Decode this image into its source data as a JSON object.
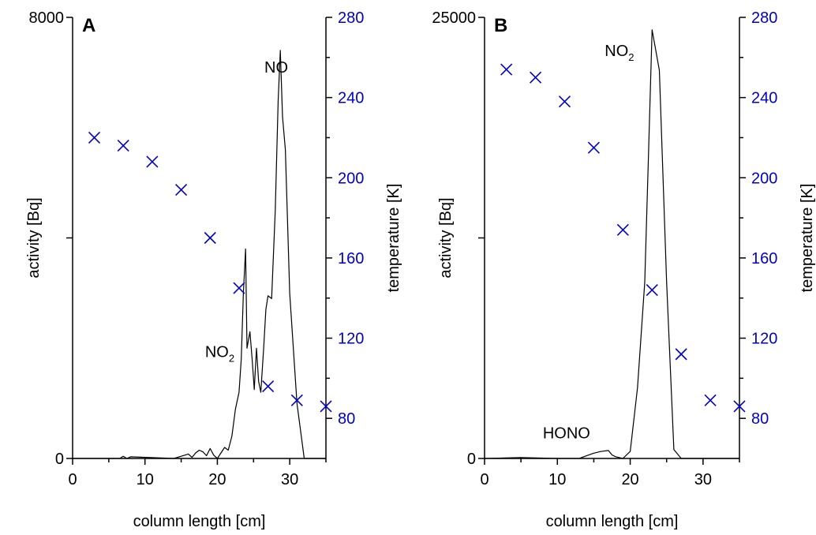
{
  "chart_data": [
    {
      "panel_label": "A",
      "type": "line",
      "xlabel": "column length [cm]",
      "ylabel": "activity [Bq]",
      "y2label": "temperature [K]",
      "xlim": [
        0,
        35
      ],
      "ylim": [
        0,
        8000
      ],
      "y2lim": [
        60,
        280
      ],
      "x_ticks": [
        0,
        10,
        20,
        30
      ],
      "y_ticks": [
        0,
        8000
      ],
      "y2_ticks": [
        80,
        120,
        160,
        200,
        240,
        280
      ],
      "colors": {
        "activity": "#000000",
        "temperature": "#0000cc"
      },
      "activity_curve": {
        "x": [
          0,
          5,
          6.5,
          7,
          7.5,
          8,
          14,
          15,
          16,
          16.5,
          17,
          17.5,
          18,
          18.5,
          19,
          19.5,
          20,
          20.5,
          21,
          21.5,
          22,
          22.5,
          23,
          23.3,
          23.6,
          23.9,
          24.1,
          24.5,
          24.8,
          25.1,
          25.4,
          25.7,
          26,
          26.4,
          26.7,
          27,
          27.5,
          28,
          28.4,
          28.7,
          29,
          29.4,
          30,
          31,
          32,
          32.5,
          35
        ],
        "y": [
          0,
          0,
          0,
          40,
          0,
          30,
          0,
          40,
          80,
          20,
          100,
          150,
          120,
          50,
          180,
          60,
          0,
          100,
          200,
          150,
          400,
          900,
          1200,
          1800,
          3000,
          3800,
          2000,
          2300,
          1800,
          1250,
          2000,
          1400,
          1200,
          2000,
          2700,
          2950,
          2900,
          4500,
          6500,
          7400,
          6200,
          5600,
          3000,
          1000,
          0,
          0,
          0
        ]
      },
      "temperature_points": {
        "x": [
          3,
          7,
          11,
          15,
          19,
          23,
          27,
          31,
          35
        ],
        "y": [
          220,
          216,
          208,
          194,
          170,
          145,
          96,
          89,
          86
        ]
      },
      "annotations": [
        {
          "text": "NO",
          "x": 26.5,
          "y": 7000
        },
        {
          "text": "NO",
          "sub": "2",
          "x": 18.3,
          "y": 1840
        }
      ]
    },
    {
      "panel_label": "B",
      "type": "line",
      "xlabel": "column length [cm]",
      "ylabel": "activity [Bq]",
      "y2label": "temperature [K]",
      "xlim": [
        0,
        35
      ],
      "ylim": [
        0,
        25000
      ],
      "y2lim": [
        60,
        280
      ],
      "x_ticks": [
        0,
        10,
        20,
        30
      ],
      "y_ticks": [
        0,
        25000
      ],
      "y2_ticks": [
        80,
        120,
        160,
        200,
        240,
        280
      ],
      "colors": {
        "activity": "#000000",
        "temperature": "#0000cc"
      },
      "activity_curve": {
        "x": [
          0,
          5,
          10,
          13,
          14,
          15,
          16,
          17,
          17.5,
          18,
          19,
          20,
          21,
          22,
          22.5,
          23,
          24,
          25,
          26,
          27,
          28,
          35
        ],
        "y": [
          0,
          50,
          0,
          0,
          150,
          300,
          400,
          450,
          200,
          100,
          0,
          400,
          4000,
          10000,
          17000,
          24300,
          22000,
          10000,
          500,
          0,
          0,
          0
        ]
      },
      "temperature_points": {
        "x": [
          3,
          7,
          11,
          15,
          19,
          23,
          27,
          31,
          35
        ],
        "y": [
          254,
          250,
          238,
          215,
          174,
          144,
          112,
          89,
          86
        ]
      },
      "annotations": [
        {
          "text": "NO",
          "sub": "2",
          "x": 16.5,
          "y": 22800
        },
        {
          "text": "HONO",
          "x": 8,
          "y": 1150
        }
      ]
    }
  ]
}
